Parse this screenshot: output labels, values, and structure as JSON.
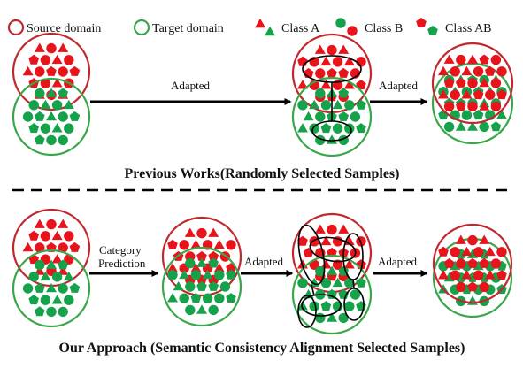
{
  "colors": {
    "source": "#c0282d",
    "target": "#3aa64a",
    "red": "#e8141c",
    "green": "#16a14b",
    "background": "#ffffff",
    "text": "#111111"
  },
  "legend": {
    "source_label": "Source domain",
    "target_label": "Target domain",
    "class_a_label": "Class A",
    "class_b_label": "Class B",
    "class_ab_label": "Class AB"
  },
  "shape_names": {
    "class_a": "triangle",
    "class_b": "circle",
    "class_ab": "pentagon"
  },
  "top": {
    "arrow1_label": "Adapted",
    "arrow2_label": "Adapted",
    "caption": "Previous Works(Randomly Selected Samples)"
  },
  "bottom": {
    "arrow1_label_line1": "Category",
    "arrow1_label_line2": "Prediction",
    "arrow2_label": "Adapted",
    "arrow3_label": "Adapted",
    "caption": "Our Approach (Semantic Consistency Alignment Selected Samples)"
  }
}
